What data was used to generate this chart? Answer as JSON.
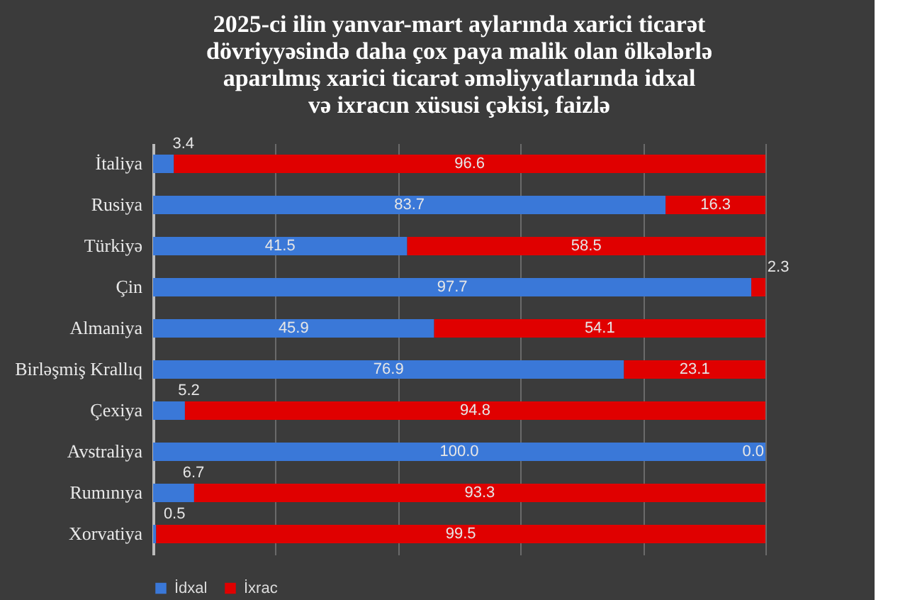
{
  "chart_data": {
    "type": "bar",
    "orientation": "horizontal",
    "stacked": true,
    "title": "2025-ci ilin yanvar-mart aylarında xarici ticarət\ndövriyyəsində daha çox paya malik olan ölkələrlə\naparılmış xarici ticarət əməliyyatlarında idxal\nvə ixracın xüsusi çəkisi, faizlə",
    "categories": [
      "İtaliya",
      "Rusiya",
      "Türkiyə",
      "Çin",
      "Almaniya",
      "Birləşmiş Krallıq",
      "Çexiya",
      "Avstraliya",
      "Rumınıya",
      "Xorvatiya"
    ],
    "series": [
      {
        "name": "İdxal",
        "color": "#3a78d8",
        "values": [
          3.4,
          83.7,
          41.5,
          97.7,
          45.9,
          76.9,
          5.2,
          100.0,
          6.7,
          0.5
        ],
        "value_labels": [
          "3.4",
          "83.7",
          "41.5",
          "97.7",
          "45.9",
          "76.9",
          "5.2",
          "100.0",
          "6.7",
          "0.5"
        ]
      },
      {
        "name": "İxrac",
        "color": "#e00000",
        "values": [
          96.6,
          16.3,
          58.5,
          2.3,
          54.1,
          23.1,
          94.8,
          0.0,
          93.3,
          99.5
        ],
        "value_labels": [
          "96.6",
          "16.3",
          "58.5",
          "2.3",
          "54.1",
          "23.1",
          "94.8",
          "0.0",
          "93.3",
          "99.5"
        ]
      }
    ],
    "xlim": [
      0,
      100
    ],
    "xticks": [
      {
        "value": 0,
        "label": null
      },
      {
        "value": 20,
        "label": null
      },
      {
        "value": 40,
        "label": null
      },
      {
        "value": 60,
        "label": null
      },
      {
        "value": 80,
        "label": null
      },
      {
        "value": 100,
        "label": null
      }
    ],
    "grid": "x",
    "tick_labels": "y",
    "legend": "bottom"
  }
}
